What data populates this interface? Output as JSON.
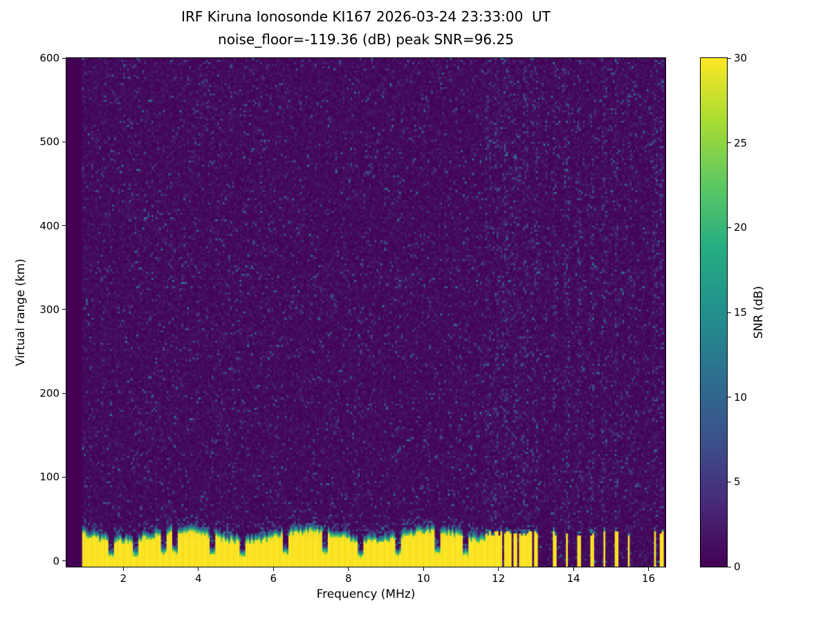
{
  "chart_data": {
    "type": "heatmap",
    "title": "IRF Kiruna Ionosonde KI167 2026-03-24 23:33:00  UT",
    "subtitle": "noise_floor=-119.36 (dB) peak SNR=96.25",
    "xlabel": "Frequency (MHz)",
    "ylabel": "Virtual range (km)",
    "colorbar_label": "SNR (dB)",
    "colormap": "viridis",
    "xlim": [
      0.48,
      16.45
    ],
    "ylim": [
      -7,
      600
    ],
    "clim": [
      0,
      30
    ],
    "xticks": [
      2,
      4,
      6,
      8,
      10,
      12,
      14,
      16
    ],
    "yticks": [
      0,
      100,
      200,
      300,
      400,
      500,
      600
    ],
    "colorbar_ticks": [
      0,
      5,
      10,
      15,
      20,
      25,
      30
    ],
    "grid": false,
    "legend": "colorbar-right",
    "freq_range_data": [
      0.9,
      16.42
    ],
    "freq_step_mhz": 0.05,
    "range_gate_km": 2.5,
    "background_snr_db": [
      0,
      2
    ],
    "speckle_noise": {
      "probability": 0.045,
      "snr_db_range": [
        3.5,
        14
      ]
    },
    "ground_clutter": {
      "freq_max_mhz": 11.62,
      "top_km_mean": 36,
      "top_km_variation": 6,
      "saturated_snr_db": 30,
      "notch_freqs_mhz": [
        1.65,
        2.3,
        3.05,
        3.35,
        4.35,
        5.15,
        6.3,
        7.35,
        8.3,
        9.3,
        10.35,
        11.1
      ]
    },
    "rf_stripes_mhz": [
      11.68,
      11.8,
      11.92,
      12.04,
      12.16,
      12.28,
      12.42,
      12.56,
      12.7,
      12.84,
      12.97,
      13.48,
      13.8,
      14.12,
      14.47,
      14.8,
      15.12,
      15.46,
      16.15,
      16.33
    ],
    "noisy_columns_mhz": [
      11.68,
      11.92,
      12.16,
      12.42,
      12.7,
      12.97,
      13.48,
      13.8,
      14.12,
      14.47,
      14.8,
      15.12,
      15.46,
      16.15,
      16.33
    ],
    "stripe_top_km": 32,
    "seed": 20260324
  }
}
